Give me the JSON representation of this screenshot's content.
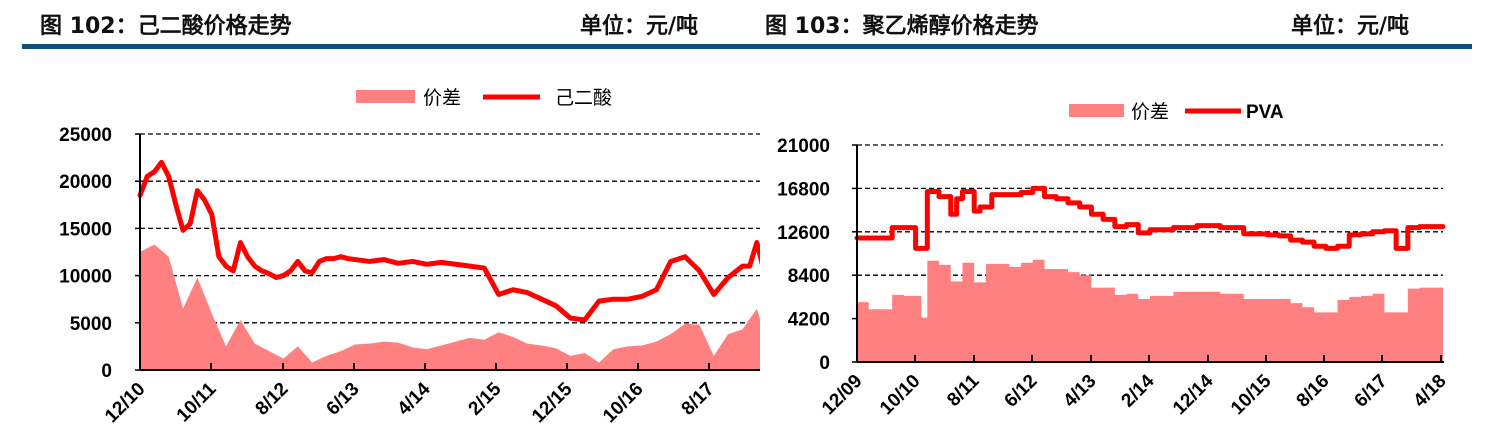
{
  "figures": [
    {
      "number_label": "图 102：己二酸价格走势",
      "unit_label": "单位：元/吨"
    },
    {
      "number_label": "图 103：聚乙烯醇价格走势",
      "unit_label": "单位：元/吨"
    }
  ],
  "colors": {
    "spread_fill": "#ff8080",
    "price_line": "#ff0000",
    "header_rule": "#0c4f80",
    "grid": "#000000"
  },
  "chart_data": [
    {
      "type": "area+line",
      "title": "图 102：己二酸价格走势",
      "unit": "元/吨",
      "legend": [
        "价差",
        "己二酸"
      ],
      "legend_position": "top",
      "grid": "dashed horizontal",
      "y_axis": {
        "ticks": [
          0,
          5000,
          10000,
          15000,
          20000,
          25000
        ],
        "ylim": [
          0,
          25000
        ]
      },
      "x_ticks": [
        "12/10",
        "10/11",
        "8/12",
        "6/13",
        "4/14",
        "2/15",
        "12/15",
        "10/16",
        "8/17"
      ],
      "series": [
        {
          "name": "己二酸",
          "type": "line",
          "x": [
            "12/10",
            "1/11",
            "2/11",
            "3/11",
            "4/11",
            "5/11",
            "6/11",
            "7/11",
            "8/11",
            "9/11",
            "10/11",
            "11/11",
            "12/11",
            "1/12",
            "2/12",
            "3/12",
            "4/12",
            "5/12",
            "6/12",
            "7/12",
            "8/12",
            "9/12",
            "10/12",
            "11/12",
            "12/12",
            "1/13",
            "2/13",
            "3/13",
            "4/13",
            "5/13",
            "6/13",
            "8/13",
            "10/13",
            "12/13",
            "2/14",
            "4/14",
            "6/14",
            "8/14",
            "10/14",
            "12/14",
            "2/15",
            "4/15",
            "6/15",
            "8/15",
            "10/15",
            "12/15",
            "2/16",
            "4/16",
            "6/16",
            "8/16",
            "10/16",
            "12/16",
            "2/17",
            "4/17",
            "6/17",
            "8/17",
            "10/17",
            "12/17",
            "1/18",
            "2/18",
            "3/18"
          ],
          "values": [
            18500,
            20500,
            21000,
            22000,
            20500,
            17500,
            14800,
            15500,
            19000,
            18000,
            16500,
            12000,
            11000,
            10500,
            13500,
            12000,
            11000,
            10500,
            10200,
            9800,
            10000,
            10500,
            11500,
            10500,
            10300,
            11500,
            11800,
            11800,
            12000,
            11800,
            11700,
            11500,
            11700,
            11300,
            11500,
            11200,
            11400,
            11200,
            11000,
            10800,
            8000,
            8500,
            8200,
            7500,
            6800,
            5500,
            5300,
            7300,
            7500,
            7500,
            7800,
            8500,
            11500,
            12000,
            10500,
            8000,
            9800,
            11000,
            11000,
            13500,
            10500
          ]
        },
        {
          "name": "价差",
          "type": "area",
          "x": [
            "12/10",
            "2/11",
            "4/11",
            "6/11",
            "8/11",
            "10/11",
            "12/11",
            "2/12",
            "4/12",
            "6/12",
            "8/12",
            "10/12",
            "12/12",
            "2/13",
            "4/13",
            "6/13",
            "8/13",
            "10/13",
            "12/13",
            "2/14",
            "4/14",
            "6/14",
            "8/14",
            "10/14",
            "12/14",
            "2/15",
            "4/15",
            "6/15",
            "8/15",
            "10/15",
            "12/15",
            "2/16",
            "4/16",
            "6/16",
            "8/16",
            "10/16",
            "12/16",
            "2/17",
            "4/17",
            "6/17",
            "8/17",
            "10/17",
            "12/17",
            "2/18",
            "3/18"
          ],
          "values": [
            12500,
            13300,
            12000,
            6500,
            9800,
            6000,
            2500,
            5300,
            2800,
            2000,
            1200,
            2500,
            800,
            1500,
            2000,
            2700,
            2800,
            3000,
            2900,
            2400,
            2200,
            2600,
            3000,
            3400,
            3200,
            4000,
            3500,
            2800,
            2600,
            2300,
            1500,
            1800,
            800,
            2200,
            2500,
            2600,
            3000,
            3800,
            4900,
            4800,
            1500,
            3800,
            4300,
            6500,
            4000
          ]
        }
      ]
    },
    {
      "type": "area+line",
      "title": "图 103：聚乙烯醇价格走势",
      "unit": "元/吨",
      "legend": [
        "价差",
        "PVA"
      ],
      "legend_position": "top",
      "grid": "dashed horizontal",
      "y_axis": {
        "ticks": [
          0,
          4200,
          8400,
          12600,
          16800,
          21000
        ],
        "ylim": [
          0,
          21000
        ]
      },
      "x_ticks": [
        "12/09",
        "10/10",
        "8/11",
        "6/12",
        "4/13",
        "2/14",
        "12/14",
        "10/15",
        "8/16",
        "6/17",
        "4/18"
      ],
      "series": [
        {
          "name": "PVA",
          "type": "line",
          "x": [
            "12/09",
            "3/10",
            "6/10",
            "8/10",
            "10/10",
            "11/10",
            "12/10",
            "2/11",
            "4/11",
            "5/11",
            "6/11",
            "8/11",
            "9/11",
            "11/11",
            "1/12",
            "4/12",
            "6/12",
            "8/12",
            "10/12",
            "12/12",
            "2/13",
            "4/13",
            "6/13",
            "8/13",
            "10/13",
            "12/13",
            "2/14",
            "6/14",
            "10/14",
            "12/14",
            "2/15",
            "6/15",
            "10/15",
            "12/15",
            "2/16",
            "4/16",
            "6/16",
            "8/16",
            "10/16",
            "12/16",
            "2/17",
            "4/17",
            "6/17",
            "8/17",
            "10/17",
            "12/17",
            "2/18",
            "4/18"
          ],
          "values": [
            12000,
            12000,
            13000,
            13000,
            11000,
            11000,
            16500,
            16000,
            14300,
            15800,
            16500,
            14600,
            15000,
            16200,
            16200,
            16400,
            16800,
            16000,
            15800,
            15400,
            15000,
            14300,
            13800,
            13100,
            13300,
            12500,
            12800,
            13000,
            13200,
            13200,
            13000,
            12400,
            12300,
            12200,
            11800,
            11600,
            11200,
            11000,
            11200,
            12300,
            12400,
            12600,
            12700,
            11000,
            13000,
            13100,
            13100,
            13100
          ]
        },
        {
          "name": "价差",
          "type": "area",
          "x": [
            "12/09",
            "2/10",
            "4/10",
            "6/10",
            "8/10",
            "10/10",
            "11/10",
            "12/10",
            "2/11",
            "4/11",
            "6/11",
            "8/11",
            "10/11",
            "12/11",
            "2/12",
            "4/12",
            "6/12",
            "8/12",
            "10/12",
            "12/12",
            "2/13",
            "4/13",
            "6/13",
            "8/13",
            "10/13",
            "12/13",
            "2/14",
            "6/14",
            "10/14",
            "12/14",
            "2/15",
            "6/15",
            "10/15",
            "12/15",
            "2/16",
            "4/16",
            "6/16",
            "8/16",
            "10/16",
            "12/16",
            "2/17",
            "4/17",
            "6/17",
            "8/17",
            "10/17",
            "12/17",
            "2/18",
            "4/18"
          ],
          "values": [
            5800,
            5100,
            5100,
            6500,
            6400,
            6400,
            4300,
            9800,
            9400,
            7800,
            9600,
            7700,
            9500,
            9500,
            9200,
            9600,
            9900,
            9000,
            9000,
            8700,
            8400,
            7200,
            7200,
            6500,
            6600,
            6100,
            6400,
            6800,
            6800,
            6800,
            6600,
            6100,
            6100,
            6100,
            5700,
            5300,
            4800,
            4800,
            6000,
            6300,
            6400,
            6600,
            4800,
            4800,
            7100,
            7200,
            7200,
            7200
          ]
        }
      ]
    }
  ]
}
